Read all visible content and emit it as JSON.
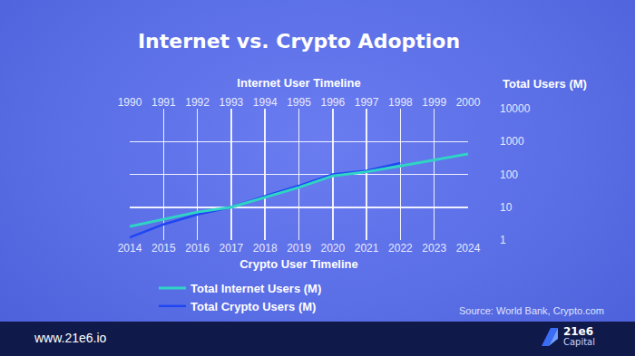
{
  "chart_data": {
    "type": "line",
    "title": "Internet vs. Crypto Adoption",
    "x_label": "Crypto User Timeline",
    "x2_label": "Internet User Timeline",
    "y_label": "Total Users (M)",
    "log": "y",
    "grid": true,
    "legend": "bottom",
    "xlim": [
      2014,
      2024
    ],
    "xticks": [
      2014,
      2015,
      2016,
      2017,
      2018,
      2019,
      2020,
      2021,
      2022,
      2023,
      2024
    ],
    "x2lim": [
      1990,
      2000
    ],
    "x2ticks": [
      1990,
      1991,
      1992,
      1993,
      1994,
      1995,
      1996,
      1997,
      1998,
      1999,
      2000
    ],
    "ylim": [
      1,
      10000
    ],
    "yticks": [
      1,
      10,
      100,
      1000,
      10000
    ],
    "series": [
      {
        "name": "Total Internet Users (M)",
        "color": "#2fd4c4",
        "axis": "x2",
        "x": [
          1990,
          1991,
          1992,
          1993,
          1994,
          1995,
          1996,
          1997,
          1998,
          1999,
          2000
        ],
        "values": [
          2.6,
          4.4,
          7.1,
          10,
          20,
          40,
          90,
          120,
          180,
          280,
          420
        ]
      },
      {
        "name": "Total Crypto Users (M)",
        "color": "#1f46f2",
        "x": [
          2014,
          2015,
          2016,
          2017,
          2018,
          2019,
          2020,
          2021,
          2022,
          2023,
          2024
        ],
        "values": [
          1.2,
          3,
          6,
          10,
          22,
          45,
          100,
          130,
          220,
          null,
          null
        ]
      }
    ]
  },
  "source": "Source: World Bank, Crypto.com",
  "footer": {
    "url": "www.21e6.io",
    "brand": [
      "21e6",
      "Capital"
    ]
  }
}
